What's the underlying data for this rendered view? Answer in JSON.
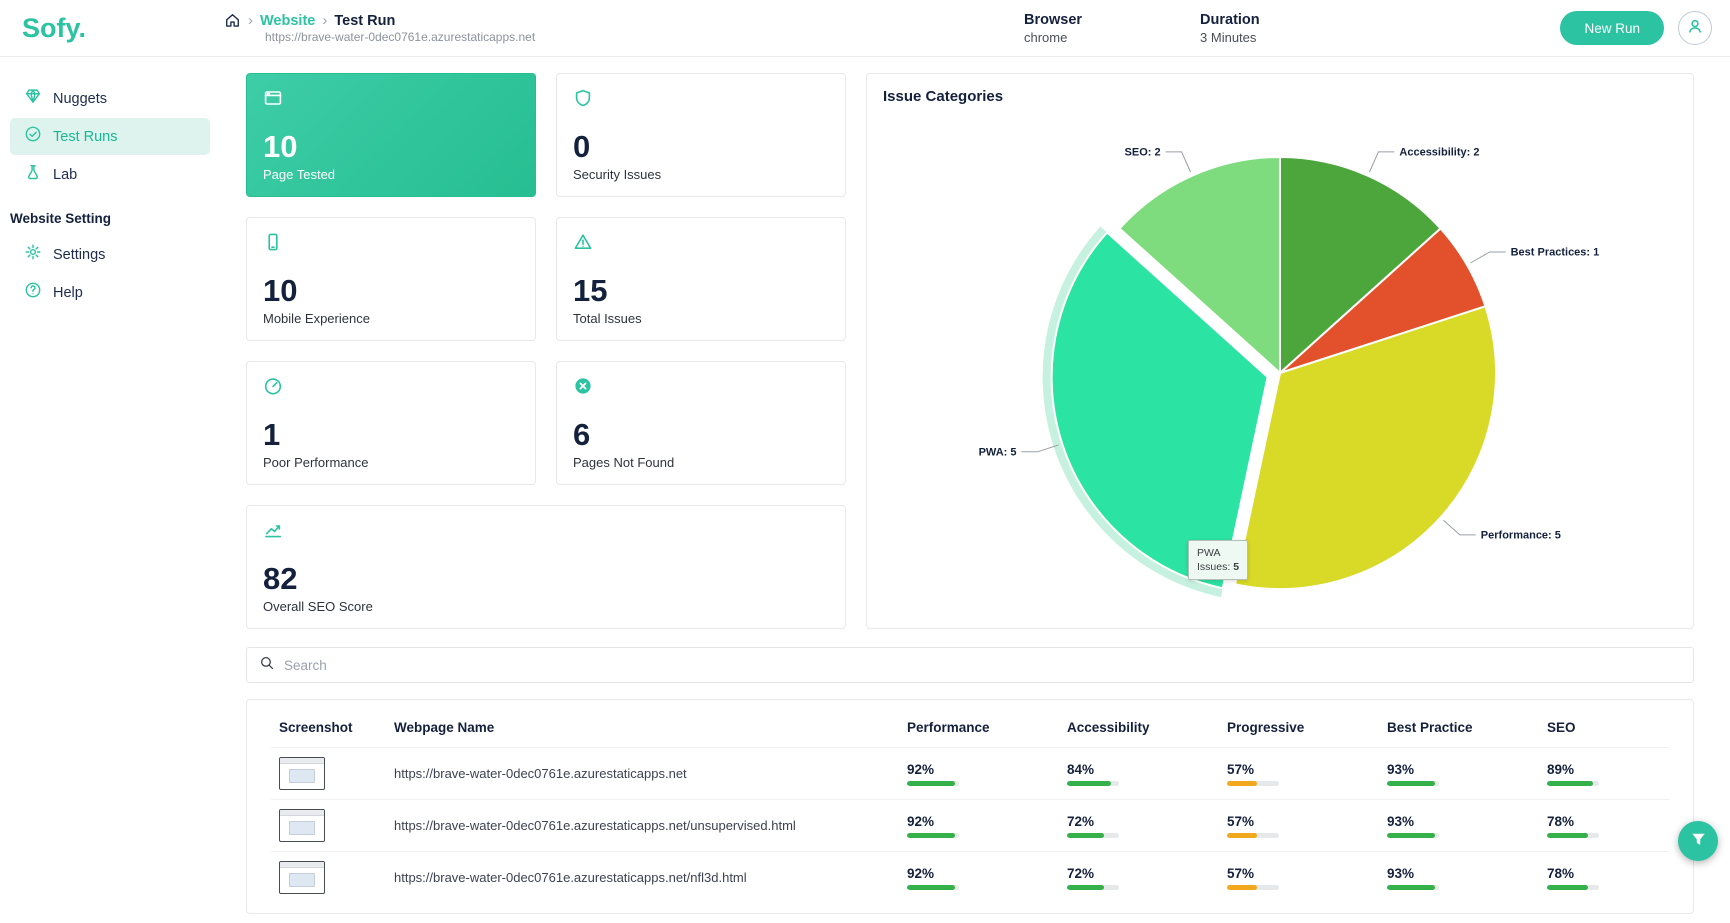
{
  "brand": {
    "name": "Sofy."
  },
  "header": {
    "breadcrumb": {
      "site": "Website",
      "page": "Test Run"
    },
    "url": "https://brave-water-0dec0761e.azurestaticapps.net",
    "browser": {
      "label": "Browser",
      "value": "chrome"
    },
    "duration": {
      "label": "Duration",
      "value": "3 Minutes"
    },
    "new_run_label": "New Run"
  },
  "sidebar": {
    "items": [
      {
        "label": "Nuggets",
        "icon": "nuggets",
        "active": false
      },
      {
        "label": "Test Runs",
        "icon": "test-runs",
        "active": true
      },
      {
        "label": "Lab",
        "icon": "lab",
        "active": false
      }
    ],
    "section_label": "Website Setting",
    "settings_items": [
      {
        "label": "Settings",
        "icon": "settings",
        "active": false
      },
      {
        "label": "Help",
        "icon": "help",
        "active": false
      }
    ]
  },
  "stats": [
    {
      "value": "10",
      "label": "Page Tested",
      "icon": "browser",
      "active": true,
      "wide": false
    },
    {
      "value": "0",
      "label": "Security Issues",
      "icon": "shield",
      "active": false,
      "wide": false
    },
    {
      "value": "10",
      "label": "Mobile Experience",
      "icon": "mobile",
      "active": false,
      "wide": false
    },
    {
      "value": "15",
      "label": "Total Issues",
      "icon": "warning",
      "active": false,
      "wide": false
    },
    {
      "value": "1",
      "label": "Poor Performance",
      "icon": "gauge",
      "active": false,
      "wide": false
    },
    {
      "value": "6",
      "label": "Pages Not Found",
      "icon": "x-circle",
      "active": false,
      "wide": false
    },
    {
      "value": "82",
      "label": "Overall SEO Score",
      "icon": "chart-line",
      "active": false,
      "wide": true
    }
  ],
  "chart_data": {
    "type": "pie",
    "title": "Issue Categories",
    "start_angle_deg": 0,
    "direction": "clockwise",
    "slices": [
      {
        "label": "Accessibility",
        "value": 2,
        "color": "#4ca63c",
        "exploded": false
      },
      {
        "label": "Best Practices",
        "value": 1,
        "color": "#e2512b",
        "exploded": false
      },
      {
        "label": "Performance",
        "value": 5,
        "color": "#d9d927",
        "exploded": false
      },
      {
        "label": "PWA",
        "value": 5,
        "color": "#2be3a3",
        "exploded": true
      },
      {
        "label": "SEO",
        "value": 2,
        "color": "#7edc7e",
        "exploded": false
      }
    ],
    "tooltip": {
      "title": "PWA",
      "text": "Issues:",
      "value": "5"
    },
    "legend": "none"
  },
  "search": {
    "placeholder": "Search"
  },
  "table": {
    "headers": [
      "Screenshot",
      "Webpage Name",
      "Performance",
      "Accessibility",
      "Progressive",
      "Best Practice",
      "SEO"
    ],
    "rows": [
      {
        "webpage": "https://brave-water-0dec0761e.azurestaticapps.net",
        "scores": [
          92,
          84,
          57,
          93,
          89
        ]
      },
      {
        "webpage": "https://brave-water-0dec0761e.azurestaticapps.net/unsupervised.html",
        "scores": [
          92,
          72,
          57,
          93,
          78
        ]
      },
      {
        "webpage": "https://brave-water-0dec0761e.azurestaticapps.net/nfl3d.html",
        "scores": [
          92,
          72,
          57,
          93,
          78
        ]
      }
    ]
  },
  "colors": {
    "brand": "#2bc3a1",
    "score_good": "#35b04a",
    "score_warn": "#f2a81d",
    "score_track": "#e7e8ea",
    "pie_halo": "#c6f1e0"
  }
}
